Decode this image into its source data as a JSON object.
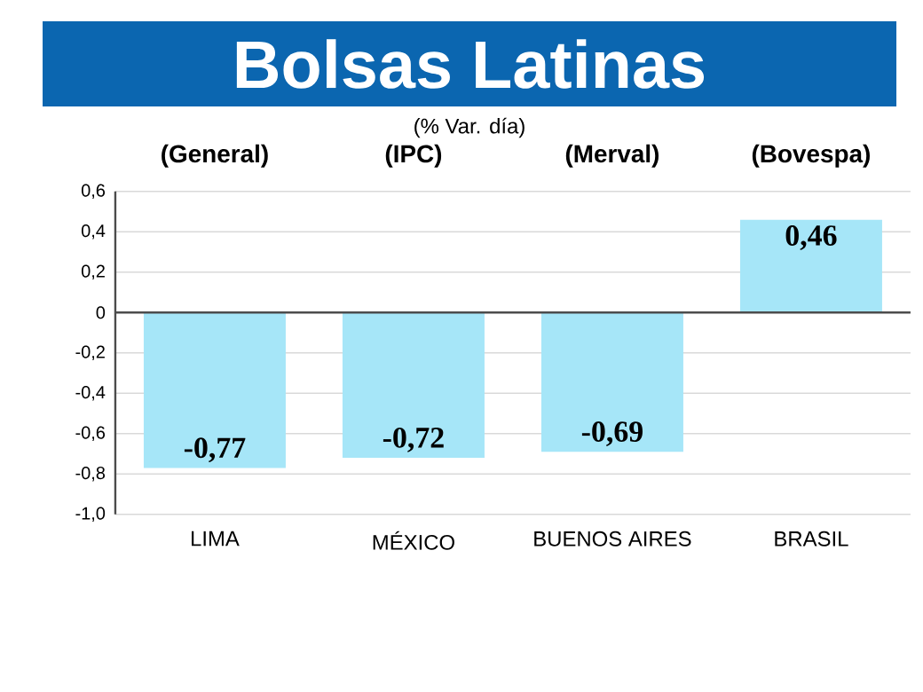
{
  "chart_data": {
    "type": "bar",
    "title": "Bolsas Latinas",
    "subtitle": "(% Var. día)",
    "categories": [
      "LIMA",
      "MÉXICO",
      "BUENOS AIRES",
      "BRASIL"
    ],
    "values": [
      -0.77,
      -0.72,
      -0.69,
      0.46
    ],
    "value_labels": [
      "-0,77",
      "-0,72",
      "-0,69",
      "0,46"
    ],
    "color": "#a6e6f8",
    "ylim": [
      -1.0,
      0.6
    ],
    "yticks": [
      {
        "value": -1.0,
        "label": "-1,0"
      },
      {
        "value": -0.8,
        "label": "-0,8"
      },
      {
        "value": -0.6,
        "label": "-0,6"
      },
      {
        "value": -0.4,
        "label": "-0,4"
      },
      {
        "value": -0.2,
        "label": "-0,2"
      },
      {
        "value": 0,
        "label": "0"
      },
      {
        "value": 0.2,
        "label": "0,2"
      },
      {
        "value": 0.4,
        "label": "0,4"
      },
      {
        "value": 0.6,
        "label": "0,6"
      }
    ],
    "grid": "y",
    "annotations": [
      "(General)",
      "(IPC)",
      "(Merval)",
      "(Bovespa)"
    ]
  }
}
